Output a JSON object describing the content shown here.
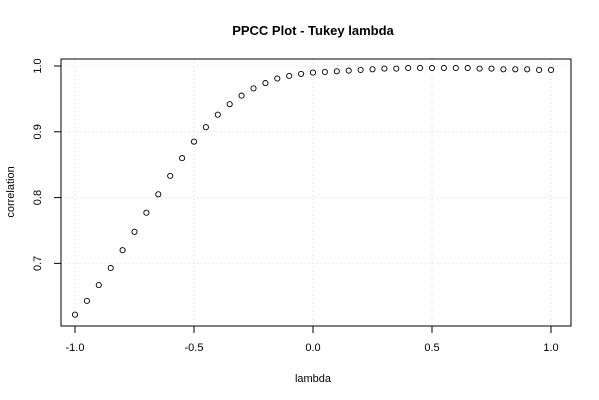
{
  "chart_data": {
    "type": "scatter",
    "title": "PPCC Plot - Tukey lambda",
    "xlabel": "lambda",
    "ylabel": "correlation",
    "xlim": [
      -1.0,
      1.0
    ],
    "ylim": [
      0.62,
      1.0
    ],
    "x_ticks": [
      "-1.0",
      "-0.5",
      "0.0",
      "0.5",
      "1.0"
    ],
    "x_tick_values": [
      -1.0,
      -0.5,
      0.0,
      0.5,
      1.0
    ],
    "y_ticks": [
      "0.7",
      "0.8",
      "0.9",
      "1.0"
    ],
    "y_tick_values": [
      0.7,
      0.8,
      0.9,
      1.0
    ],
    "grid": true,
    "marker": "open-circle",
    "marker_color": "#000000",
    "series": [
      {
        "x": [
          -1.0,
          -0.95,
          -0.9,
          -0.85,
          -0.8,
          -0.75,
          -0.7,
          -0.65,
          -0.6,
          -0.55,
          -0.5,
          -0.45,
          -0.4,
          -0.35,
          -0.3,
          -0.25,
          -0.2,
          -0.15,
          -0.1,
          -0.05,
          0.0,
          0.05,
          0.1,
          0.15,
          0.2,
          0.25,
          0.3,
          0.35,
          0.4,
          0.45,
          0.5,
          0.55,
          0.6,
          0.65,
          0.7,
          0.75,
          0.8,
          0.85,
          0.9,
          0.95,
          1.0
        ],
        "y": [
          0.622,
          0.643,
          0.667,
          0.693,
          0.72,
          0.748,
          0.777,
          0.805,
          0.833,
          0.86,
          0.885,
          0.907,
          0.926,
          0.942,
          0.955,
          0.966,
          0.974,
          0.981,
          0.985,
          0.988,
          0.99,
          0.991,
          0.992,
          0.993,
          0.994,
          0.995,
          0.996,
          0.996,
          0.997,
          0.997,
          0.997,
          0.997,
          0.997,
          0.997,
          0.996,
          0.996,
          0.995,
          0.995,
          0.995,
          0.994,
          0.994
        ]
      }
    ]
  }
}
